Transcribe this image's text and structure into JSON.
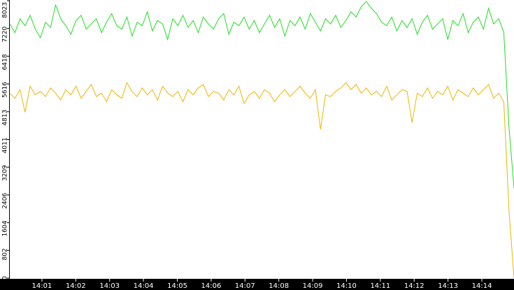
{
  "chart_data": {
    "type": "line",
    "xlim": [
      0.05,
      14.95
    ],
    "xticks": [
      {
        "value": 1,
        "label": "14:01"
      },
      {
        "value": 2,
        "label": "14:02"
      },
      {
        "value": 3,
        "label": "14:03"
      },
      {
        "value": 4,
        "label": "14:04"
      },
      {
        "value": 5,
        "label": "14:05"
      },
      {
        "value": 6,
        "label": "14:06"
      },
      {
        "value": 7,
        "label": "14:07"
      },
      {
        "value": 8,
        "label": "14:08"
      },
      {
        "value": 9,
        "label": "14:09"
      },
      {
        "value": 10,
        "label": "14:10"
      },
      {
        "value": 11,
        "label": "14:11"
      },
      {
        "value": 12,
        "label": "14:12"
      },
      {
        "value": 13,
        "label": "14:13"
      },
      {
        "value": 14,
        "label": "14:14"
      }
    ],
    "ylim": [
      0,
      8023
    ],
    "yticks": [
      0,
      802,
      1604,
      2406,
      3209,
      4011,
      4813,
      5616,
      6418,
      7220,
      8023
    ],
    "series": [
      {
        "color": "#22dd22",
        "values": [
          7350,
          7100,
          7500,
          7300,
          7600,
          7200,
          6950,
          7400,
          7250,
          7900,
          7500,
          7300,
          7050,
          7450,
          7600,
          7200,
          7350,
          7500,
          7100,
          7400,
          7650,
          7300,
          7200,
          7550,
          7000,
          7400,
          7300,
          7700,
          7150,
          7450,
          7350,
          6900,
          7500,
          7300,
          7600,
          7250,
          7450,
          7100,
          7550,
          7350,
          7200,
          7500,
          7650,
          7050,
          7400,
          7300,
          7550,
          7200,
          7450,
          7100,
          7350,
          7600,
          7250,
          7500,
          7000,
          7450,
          7300,
          7550,
          7200,
          7650,
          7400,
          7150,
          7500,
          7350,
          7600,
          7250,
          7450,
          7700,
          7550,
          7850,
          8000,
          7800,
          7650,
          7400,
          7300,
          7550,
          7150,
          7450,
          7250,
          7500,
          7050,
          7400,
          7600,
          7200,
          7350,
          7500,
          6900,
          7450,
          7300,
          7650,
          7100,
          7400,
          7550,
          7200,
          7800,
          7350,
          7500,
          7100,
          4400,
          2600
        ]
      },
      {
        "color": "#f0b400",
        "values": [
          5350,
          5200,
          5450,
          4800,
          5550,
          5300,
          5400,
          5250,
          5500,
          5350,
          5150,
          5450,
          5300,
          5550,
          5200,
          5400,
          5600,
          5250,
          5350,
          5100,
          5450,
          5300,
          5200,
          5650,
          5400,
          5250,
          5500,
          5300,
          5450,
          5150,
          5550,
          5350,
          5250,
          5400,
          5100,
          5450,
          5300,
          5500,
          5600,
          5250,
          5400,
          5350,
          5150,
          5450,
          5300,
          5550,
          5050,
          5300,
          5400,
          5200,
          5450,
          5350,
          5100,
          5300,
          5450,
          5250,
          5400,
          5550,
          5350,
          5200,
          5450,
          4300,
          5300,
          5250,
          5400,
          5500,
          5650,
          5450,
          5600,
          5350,
          5500,
          5300,
          5400,
          5250,
          5550,
          5150,
          5300,
          5450,
          5400,
          4500,
          5350,
          5250,
          5500,
          5200,
          5400,
          5300,
          5550,
          5150,
          5450,
          5350,
          5250,
          5500,
          5300,
          5450,
          5600,
          5200,
          5350,
          5100,
          2000,
          0
        ]
      }
    ]
  }
}
